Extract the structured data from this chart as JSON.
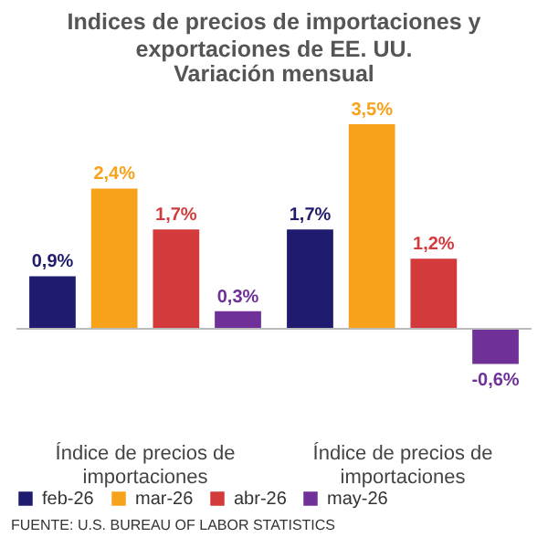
{
  "chart_data": {
    "type": "bar",
    "title": "Indices de precios de importaciones y exportaciones de EE. UU.",
    "subtitle": "Variación mensual",
    "categories": [
      "Índice de precios de importaciones",
      "Índice de precios de importaciones"
    ],
    "series": [
      {
        "name": "feb-26",
        "color": "#1f1b6e",
        "values": [
          0.9,
          1.7
        ],
        "value_labels": [
          "0,9%",
          "1,7%"
        ]
      },
      {
        "name": "mar-26",
        "color": "#f7a21b",
        "values": [
          2.4,
          3.5
        ],
        "value_labels": [
          "2,4%",
          "3,5%"
        ]
      },
      {
        "name": "abr-26",
        "color": "#d23a3c",
        "values": [
          1.7,
          1.2
        ],
        "value_labels": [
          "1,7%",
          "1,2%"
        ]
      },
      {
        "name": "may-26",
        "color": "#6f3198",
        "values": [
          0.3,
          -0.6
        ],
        "value_labels": [
          "0,3%",
          "-0,6%"
        ]
      }
    ],
    "legend": "bottom",
    "grid": false,
    "annotations": [
      "FUENTE: U.S. BUREAU OF LABOR STATISTICS"
    ]
  }
}
